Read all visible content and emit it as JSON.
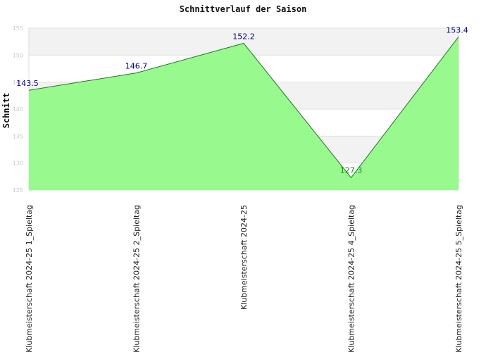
{
  "chart_data": {
    "type": "area",
    "title": "Schnittverlauf der Saison",
    "xlabel": "",
    "ylabel": "Schnitt",
    "categories": [
      "Klubmeisterschaft 2024-25   1_Spieltag",
      "Klubmeisterschaft 2024-25   2_Spieltag",
      "Klubmeisterschaft 2024-25",
      "Klubmeisterschaft 2024-25   4_Spieltag",
      "Klubmeisterschaft 2024-25   5_Spieltag"
    ],
    "values": [
      143.5,
      146.7,
      152.2,
      127.3,
      153.4
    ],
    "value_labels": [
      "143.5",
      "146.7",
      "152.2",
      "127.3",
      "153.4"
    ],
    "ylim": [
      125,
      155
    ],
    "yticks": [
      "125",
      "130",
      "135",
      "140",
      "145",
      "150",
      "155"
    ],
    "grid": true,
    "colors": {
      "fill": "#98f98e",
      "line": "#1a7a1a",
      "label": "#000080",
      "label_low": "#1a8a1a",
      "band": "#f2f2f2"
    }
  }
}
